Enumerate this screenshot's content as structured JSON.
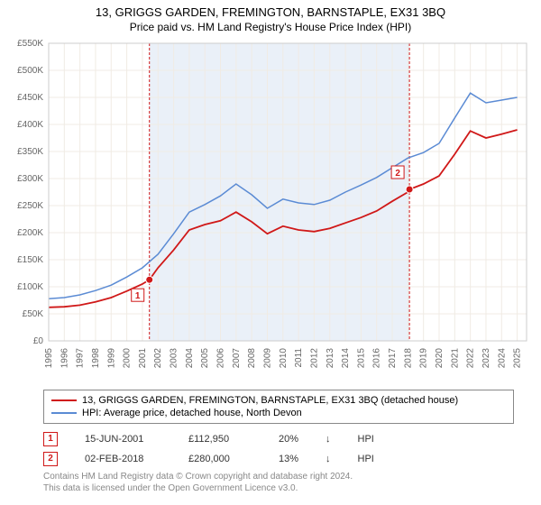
{
  "title": "13, GRIGGS GARDEN, FREMINGTON, BARNSTAPLE, EX31 3BQ",
  "subtitle": "Price paid vs. HM Land Registry's House Price Index (HPI)",
  "chart": {
    "type": "line",
    "background_color": "#ffffff",
    "shaded_band_color": "#eaf0f8",
    "grid_color": "#f0ebe4",
    "x": {
      "years": [
        1995,
        1996,
        1997,
        1998,
        1999,
        2000,
        2001,
        2002,
        2003,
        2004,
        2005,
        2006,
        2007,
        2008,
        2009,
        2010,
        2011,
        2012,
        2013,
        2014,
        2015,
        2016,
        2017,
        2018,
        2019,
        2020,
        2021,
        2022,
        2023,
        2024,
        2025
      ],
      "lim": [
        1995,
        2025.6
      ]
    },
    "y": {
      "label_prefix": "£",
      "label_suffix": "K",
      "ticks": [
        0,
        50,
        100,
        150,
        200,
        250,
        300,
        350,
        400,
        450,
        500,
        550
      ],
      "lim": [
        0,
        550
      ]
    },
    "shaded_band": {
      "start": 2001.45,
      "end": 2018.1
    },
    "series": [
      {
        "name": "property",
        "color": "#d01818",
        "width": 1.8,
        "points": [
          [
            1995,
            62
          ],
          [
            1996,
            63
          ],
          [
            1997,
            66
          ],
          [
            1998,
            72
          ],
          [
            1999,
            80
          ],
          [
            2000,
            92
          ],
          [
            2001,
            105
          ],
          [
            2001.45,
            113
          ],
          [
            2002,
            135
          ],
          [
            2003,
            168
          ],
          [
            2004,
            205
          ],
          [
            2005,
            215
          ],
          [
            2006,
            222
          ],
          [
            2007,
            238
          ],
          [
            2008,
            220
          ],
          [
            2009,
            198
          ],
          [
            2010,
            212
          ],
          [
            2011,
            205
          ],
          [
            2012,
            202
          ],
          [
            2013,
            208
          ],
          [
            2014,
            218
          ],
          [
            2015,
            228
          ],
          [
            2016,
            240
          ],
          [
            2017,
            258
          ],
          [
            2018,
            275
          ],
          [
            2018.1,
            280
          ],
          [
            2019,
            290
          ],
          [
            2020,
            305
          ],
          [
            2021,
            345
          ],
          [
            2022,
            388
          ],
          [
            2023,
            375
          ],
          [
            2024,
            382
          ],
          [
            2025,
            390
          ]
        ]
      },
      {
        "name": "hpi",
        "color": "#5b8bd4",
        "width": 1.5,
        "points": [
          [
            1995,
            78
          ],
          [
            1996,
            80
          ],
          [
            1997,
            85
          ],
          [
            1998,
            93
          ],
          [
            1999,
            103
          ],
          [
            2000,
            118
          ],
          [
            2001,
            135
          ],
          [
            2002,
            160
          ],
          [
            2003,
            198
          ],
          [
            2004,
            238
          ],
          [
            2005,
            252
          ],
          [
            2006,
            268
          ],
          [
            2007,
            290
          ],
          [
            2008,
            270
          ],
          [
            2009,
            245
          ],
          [
            2010,
            262
          ],
          [
            2011,
            255
          ],
          [
            2012,
            252
          ],
          [
            2013,
            260
          ],
          [
            2014,
            275
          ],
          [
            2015,
            288
          ],
          [
            2016,
            302
          ],
          [
            2017,
            320
          ],
          [
            2018,
            338
          ],
          [
            2019,
            348
          ],
          [
            2020,
            365
          ],
          [
            2021,
            412
          ],
          [
            2022,
            458
          ],
          [
            2023,
            440
          ],
          [
            2024,
            445
          ],
          [
            2025,
            450
          ]
        ]
      }
    ],
    "markers": [
      {
        "num": "1",
        "year": 2001.45,
        "price": 113
      },
      {
        "num": "2",
        "year": 2018.1,
        "price": 280
      }
    ]
  },
  "legend": {
    "items": [
      {
        "color": "#d01818",
        "label": "13, GRIGGS GARDEN, FREMINGTON, BARNSTAPLE, EX31 3BQ (detached house)"
      },
      {
        "color": "#5b8bd4",
        "label": "HPI: Average price, detached house, North Devon"
      }
    ]
  },
  "marker_rows": [
    {
      "num": "1",
      "date": "15-JUN-2001",
      "price": "£112,950",
      "pct": "20%",
      "arrow": "↓",
      "hpi": "HPI"
    },
    {
      "num": "2",
      "date": "02-FEB-2018",
      "price": "£280,000",
      "pct": "13%",
      "arrow": "↓",
      "hpi": "HPI"
    }
  ],
  "footer": {
    "line1": "Contains HM Land Registry data © Crown copyright and database right 2024.",
    "line2": "This data is licensed under the Open Government Licence v3.0."
  }
}
